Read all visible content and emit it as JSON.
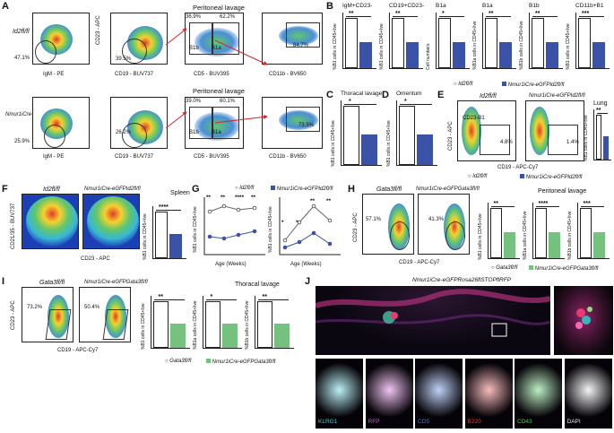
{
  "panels": {
    "A": {
      "letter": "A",
      "title_top": "Peritoneal lavage",
      "title_bottom": "Peritoneal lavage",
      "row1_label": "Id2fl/fl",
      "row2_label": "Nmur1iCre-eGFPId2fl/fl",
      "row1": {
        "p1": {
          "xlabel": "IgM - PE",
          "ylabel": "CD23 - APC",
          "pct": "47.1%"
        },
        "p2": {
          "xlabel": "CD19 - BUV737",
          "ylabel": "CD23 - APC",
          "pct": "39.5%"
        },
        "p3": {
          "xlabel": "CD5 - BUV395",
          "ylabel": "CD19 - BUV737",
          "pct_b1b": "36.9%",
          "pct_b1a": "62.2%",
          "g1": "B1b",
          "g2": "B1a"
        },
        "p4": {
          "xlabel": "CD11b - BV650",
          "ylabel": "CD19 - BUV737",
          "pct": "84.7%"
        }
      },
      "row2": {
        "p1": {
          "xlabel": "IgM - PE",
          "ylabel": "CD23 - APC",
          "pct": "25.9%"
        },
        "p2": {
          "xlabel": "CD19 - BUV737",
          "ylabel": "CD23 - APC",
          "pct": "26.2%"
        },
        "p3": {
          "xlabel": "CD5 - BUV395",
          "ylabel": "CD19 - BUV737",
          "pct_b1b": "39.0%",
          "pct_b1a": "60.1%",
          "g1": "B1b",
          "g2": "B1a"
        },
        "p4": {
          "xlabel": "CD11b - BV650",
          "ylabel": "CD19 - BUV737",
          "pct": "73.5%"
        }
      }
    },
    "B": {
      "letter": "B",
      "charts": [
        {
          "title": "IgM+CD23-",
          "ylabel": "%B1 cells in CD45+live",
          "sig": "**"
        },
        {
          "title": "CD19+CD23-",
          "ylabel": "%B1 cells in CD45+live",
          "sig": "**"
        },
        {
          "title": "B1a",
          "ylabel": "Cell numbers",
          "sig": "*"
        },
        {
          "title": "B1a",
          "ylabel": "%B1a cells in CD45+live",
          "sig": "**"
        },
        {
          "title": "B1b",
          "ylabel": "%B1b cells in CD45+live",
          "sig": "**"
        },
        {
          "title": "CD11b+B1",
          "ylabel": "%B1 cells in CD45+live",
          "sig": "***"
        }
      ],
      "legend": {
        "ctrl": "Id2fl/fl",
        "ko": "Nmur1iCre-eGFPId2fl/fl"
      }
    },
    "C": {
      "letter": "C",
      "title": "Thoracal lavage",
      "ylabel": "%B1 cells in CD45+live",
      "sig": "*"
    },
    "D": {
      "letter": "D",
      "title": "Omentum",
      "ylabel": "%B1 cells in CD45+live",
      "sig": "*"
    },
    "E": {
      "letter": "E",
      "left_label": "Id2fl/fl",
      "right_label": "Nmur1iCre-eGFPId2fl/fl",
      "gate_label": "CD23-B1",
      "pct_left": "4.8%",
      "pct_right": "1.4%",
      "xlabel": "CD19 - APC-Cy7",
      "ylabel": "CD23 - APC",
      "chart_title": "Lung",
      "chart_ylabel": "%B1 cells in CD45+live",
      "sig": "**",
      "legend": {
        "ctrl": "Id2fl/fl",
        "ko": "Nmur1iCre-eGFPId2fl/fl"
      }
    },
    "F": {
      "letter": "F",
      "left_label": "Id2fl/fl",
      "right_label": "Nmur1iCre-eGFPId2fl/fl",
      "xlabel": "CD23 - APC",
      "ylabel": "CD21/35 - BUV737",
      "chart_title": "Spleen",
      "chart_ylabel": "%B1 cells in CD45+live",
      "sig": "****"
    },
    "G": {
      "letter": "G",
      "legend": {
        "ctrl": "Id2fl/fl",
        "ko": "Nmur1iCre-eGFPId2fl/fl"
      },
      "xlabel": "Age (Weeks)",
      "ylabel": "%B1 cells in CD45+live",
      "left_sigs": [
        "**",
        "**",
        "****",
        "**"
      ],
      "right_sigs": [
        "*",
        "*",
        "**",
        "**"
      ]
    },
    "H": {
      "letter": "H",
      "left_label": "Gata3fl/fl",
      "right_label": "Nmur1iCre-eGFPGata3fl/fl",
      "pct_left": "57.1%",
      "pct_right": "41.3%",
      "xlabel": "CD19 - APC-Cy7",
      "ylabel": "CD23 - APC",
      "chart_title": "Peritoneal lavage",
      "charts": [
        {
          "ylabel": "%B1 cells in CD45+live",
          "sig": "**"
        },
        {
          "ylabel": "%B1a cells in CD45+live",
          "sig": "****"
        },
        {
          "ylabel": "%B1b cells in CD45+live",
          "sig": "***"
        }
      ],
      "legend": {
        "ctrl": "Gata3fl/fl",
        "ko": "Nmur1iCre-eGFPGata3fl/fl"
      }
    },
    "I": {
      "letter": "I",
      "left_label": "Gata3fl/fl",
      "right_label": "Nmur1iCre-eGFPGata3fl/fl",
      "pct_left": "73.2%",
      "pct_right": "50.4%",
      "xlabel": "CD19 - APC-Cy7",
      "ylabel": "CD23 - APC",
      "chart_title": "Thoracal lavage",
      "charts": [
        {
          "ylabel": "%B1 cells in CD45+live",
          "sig": "**"
        },
        {
          "ylabel": "%B1a cells in CD45+live",
          "sig": "*"
        },
        {
          "ylabel": "%B1b cells in CD45+live",
          "sig": "**"
        }
      ],
      "legend": {
        "ctrl": "Gata3fl/fl",
        "ko": "Nmur1iCre-eGFPGata3fl/fl"
      }
    },
    "J": {
      "letter": "J",
      "title": "Nmur1iCre-eGFPRosa26flSTOPflRFP",
      "channels": [
        "KLRG1",
        "RFP",
        "CD5",
        "B220",
        "CD43",
        "DAPI"
      ]
    }
  },
  "colors": {
    "ctrl_bar": "#ffffff",
    "ko_bar": "#3a52a8",
    "gata_ko_bar": "#74c27d",
    "arrow": "#d9262b"
  }
}
